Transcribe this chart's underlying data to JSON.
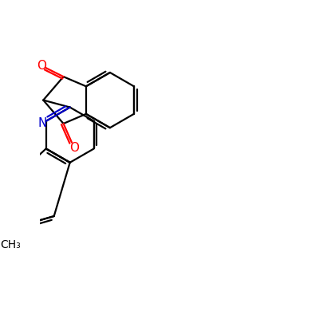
{
  "background_color": "#ffffff",
  "bond_color": "#000000",
  "oxygen_color": "#ff0000",
  "nitrogen_color": "#0000cc",
  "lw": 1.6,
  "figsize": [
    4.0,
    4.0
  ],
  "dpi": 100,
  "xlim": [
    0,
    10
  ],
  "ylim": [
    0,
    10
  ]
}
